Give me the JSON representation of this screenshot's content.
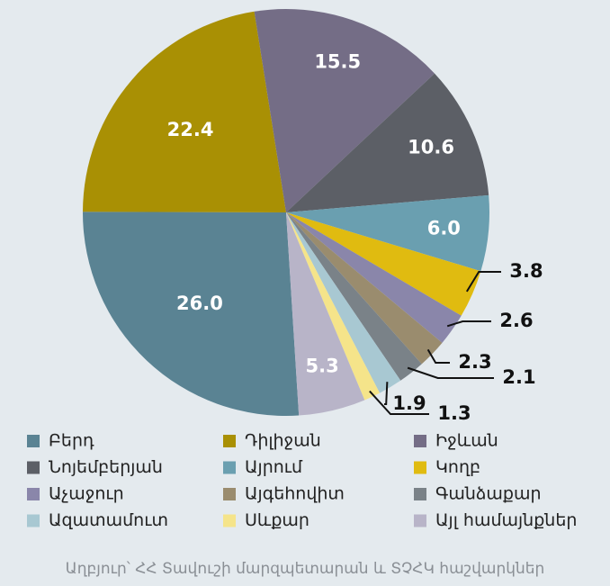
{
  "chart_data": {
    "type": "pie",
    "categories": [
      "Բերդ",
      "Դիլիջան",
      "Իջևան",
      "Նոյեմբերյան",
      "Այրում",
      "Կողբ",
      "Աչաջուր",
      "Այգեհովիտ",
      "Գանձաքար",
      "Ազատամուտ",
      "Սևքար",
      "Այլ համայնքներ"
    ],
    "values": [
      26.0,
      22.4,
      15.5,
      10.6,
      6.0,
      3.8,
      2.6,
      2.3,
      2.1,
      1.9,
      1.3,
      5.3
    ],
    "value_labels": [
      "26.0",
      "22.4",
      "15.5",
      "10.6",
      "6.0",
      "3.8",
      "2.6",
      "2.3",
      "2.1",
      "1.9",
      "1.3",
      "5.3"
    ],
    "colors": [
      "#5a8393",
      "#a99004",
      "#746d86",
      "#5c5f66",
      "#6a9fb0",
      "#e0bb10",
      "#8a86aa",
      "#9a8c6e",
      "#7a8288",
      "#a8c8d2",
      "#f5e48a",
      "#b8b4c8"
    ],
    "source": "Աղբյուր՝ ՀՀ Տավուշի մարզպետարան և ՏՉՀԿ հաշվարկներ"
  }
}
